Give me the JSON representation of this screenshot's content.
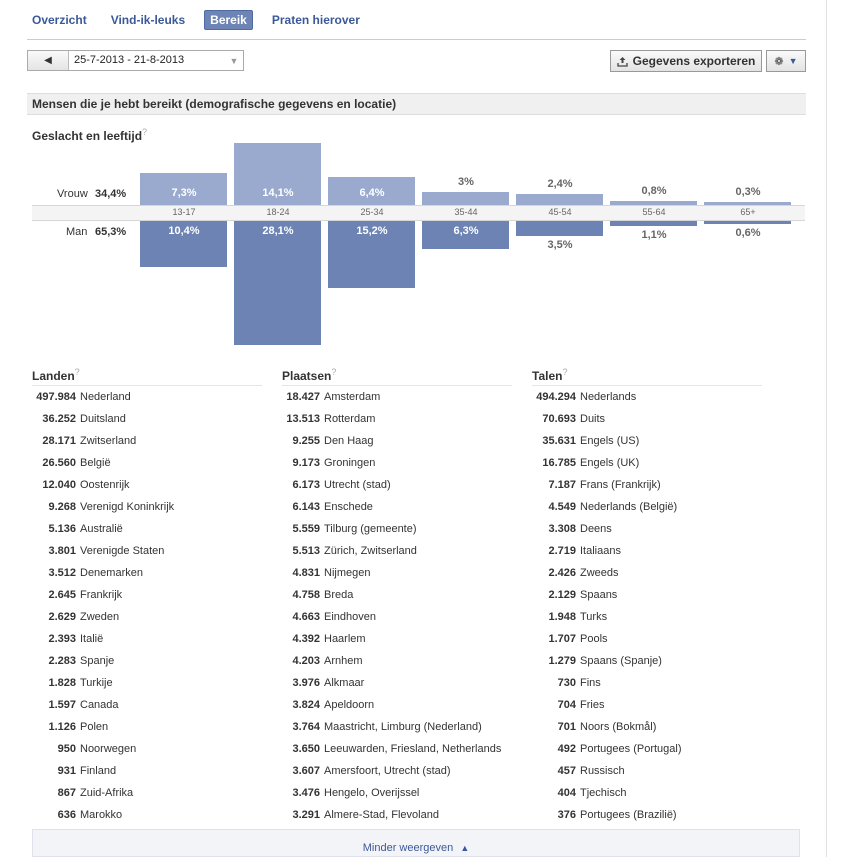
{
  "tabs": [
    {
      "label": "Overzicht",
      "active": false
    },
    {
      "label": "Vind-ik-leuks",
      "active": false
    },
    {
      "label": "Bereik",
      "active": true
    },
    {
      "label": "Praten hierover",
      "active": false
    }
  ],
  "date_range": "25-7-2013 - 21-8-2013",
  "export_label": "Gegevens exporteren",
  "section_title": "Mensen die je hebt bereikt (demografische gegevens en locatie)",
  "chart_title": "Geslacht en leeftijd",
  "help_mark": "?",
  "icons": {
    "prev": "left-arrow-icon",
    "dropdown": "caret-down-icon",
    "export": "upload-icon",
    "gear": "gear-icon"
  },
  "colors": {
    "female_bar": "#9aaace",
    "male_bar": "#6d83b3",
    "link": "#3b5998"
  },
  "chart_data": {
    "type": "bar",
    "title": "Geslacht en leeftijd",
    "categories": [
      "13-17",
      "18-24",
      "25-34",
      "35-44",
      "45-54",
      "55-64",
      "65+"
    ],
    "series": [
      {
        "name": "Vrouw",
        "total": "34,4%",
        "values": [
          7.3,
          14.1,
          6.4,
          3,
          2.4,
          0.8,
          0.3
        ],
        "labels": [
          "7,3%",
          "14,1%",
          "6,4%",
          "3%",
          "2,4%",
          "0,8%",
          "0,3%"
        ]
      },
      {
        "name": "Man",
        "total": "65,3%",
        "values": [
          10.4,
          28.1,
          15.2,
          6.3,
          3.5,
          1.1,
          0.6
        ],
        "labels": [
          "10,4%",
          "28,1%",
          "15,2%",
          "6,3%",
          "3,5%",
          "1,1%",
          "0,6%"
        ]
      }
    ]
  },
  "lists": [
    {
      "title": "Landen",
      "items": [
        [
          "497.984",
          "Nederland"
        ],
        [
          "36.252",
          "Duitsland"
        ],
        [
          "28.171",
          "Zwitserland"
        ],
        [
          "26.560",
          "België"
        ],
        [
          "12.040",
          "Oostenrijk"
        ],
        [
          "9.268",
          "Verenigd Koninkrijk"
        ],
        [
          "5.136",
          "Australië"
        ],
        [
          "3.801",
          "Verenigde Staten"
        ],
        [
          "3.512",
          "Denemarken"
        ],
        [
          "2.645",
          "Frankrijk"
        ],
        [
          "2.629",
          "Zweden"
        ],
        [
          "2.393",
          "Italië"
        ],
        [
          "2.283",
          "Spanje"
        ],
        [
          "1.828",
          "Turkije"
        ],
        [
          "1.597",
          "Canada"
        ],
        [
          "1.126",
          "Polen"
        ],
        [
          "950",
          "Noorwegen"
        ],
        [
          "931",
          "Finland"
        ],
        [
          "867",
          "Zuid-Afrika"
        ],
        [
          "636",
          "Marokko"
        ]
      ]
    },
    {
      "title": "Plaatsen",
      "items": [
        [
          "18.427",
          "Amsterdam"
        ],
        [
          "13.513",
          "Rotterdam"
        ],
        [
          "9.255",
          "Den Haag"
        ],
        [
          "9.173",
          "Groningen"
        ],
        [
          "6.173",
          "Utrecht (stad)"
        ],
        [
          "6.143",
          "Enschede"
        ],
        [
          "5.559",
          "Tilburg (gemeente)"
        ],
        [
          "5.513",
          "Zürich, Zwitserland"
        ],
        [
          "4.831",
          "Nijmegen"
        ],
        [
          "4.758",
          "Breda"
        ],
        [
          "4.663",
          "Eindhoven"
        ],
        [
          "4.392",
          "Haarlem"
        ],
        [
          "4.203",
          "Arnhem"
        ],
        [
          "3.976",
          "Alkmaar"
        ],
        [
          "3.824",
          "Apeldoorn"
        ],
        [
          "3.764",
          "Maastricht, Limburg (Nederland)"
        ],
        [
          "3.650",
          "Leeuwarden, Friesland, Netherlands"
        ],
        [
          "3.607",
          "Amersfoort, Utrecht (stad)"
        ],
        [
          "3.476",
          "Hengelo, Overijssel"
        ],
        [
          "3.291",
          "Almere-Stad, Flevoland"
        ]
      ]
    },
    {
      "title": "Talen",
      "items": [
        [
          "494.294",
          "Nederlands"
        ],
        [
          "70.693",
          "Duits"
        ],
        [
          "35.631",
          "Engels (US)"
        ],
        [
          "16.785",
          "Engels (UK)"
        ],
        [
          "7.187",
          "Frans (Frankrijk)"
        ],
        [
          "4.549",
          "Nederlands (België)"
        ],
        [
          "3.308",
          "Deens"
        ],
        [
          "2.719",
          "Italiaans"
        ],
        [
          "2.426",
          "Zweeds"
        ],
        [
          "2.129",
          "Spaans"
        ],
        [
          "1.948",
          "Turks"
        ],
        [
          "1.707",
          "Pools"
        ],
        [
          "1.279",
          "Spaans (Spanje)"
        ],
        [
          "730",
          "Fins"
        ],
        [
          "704",
          "Fries"
        ],
        [
          "701",
          "Noors (Bokmål)"
        ],
        [
          "492",
          "Portugees (Portugal)"
        ],
        [
          "457",
          "Russisch"
        ],
        [
          "404",
          "Tjechisch"
        ],
        [
          "376",
          "Portugees (Brazilië)"
        ]
      ]
    }
  ],
  "footer_label": "Minder weergeven"
}
